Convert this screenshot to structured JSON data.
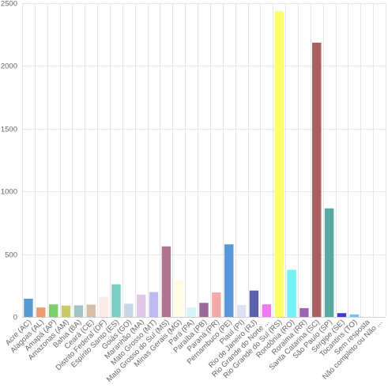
{
  "chart_data": {
    "type": "bar",
    "title": "",
    "xlabel": "",
    "ylabel": "",
    "ylim": [
      0,
      2500
    ],
    "yticks": [
      0,
      500,
      1000,
      1500,
      2000,
      2500
    ],
    "ytick_labels": [
      "0",
      "500",
      "1000",
      "1500",
      "2000",
      "2500"
    ],
    "grid": true,
    "legend": "none",
    "categories": [
      "Acre (AC)",
      "Alagoas (AL)",
      "Amapá (AP)",
      "Amazonas (AM)",
      "Bahia (BA)",
      "Ceará (CE)",
      "Distrito Federal (DF)",
      "Espírito Santo (ES)",
      "Goiás (GO)",
      "Maranhão (MA)",
      "Mato Grosso (MT)",
      "Mato Grosso do Sul (MS)",
      "Minas Gerais (MG)",
      "Pará (PA)",
      "Paraíba (PB)",
      "Paraná (PR)",
      "Pernambuco (PE)",
      "Piauí (PI)",
      "Rio de Janeiro (RJ)",
      "Rio Grande do Norte ...",
      "Rio Grande do Sul (RS)",
      "Rondônia (RO)",
      "Roraima (RR)",
      "Santa Catarina (SC)",
      "São Paulo (SP)",
      "Sergipe (SE)",
      "Tocantins (TO)",
      "Sem resposta",
      "Não completo ou Não ..."
    ],
    "values": [
      145,
      75,
      100,
      90,
      92,
      98,
      160,
      260,
      105,
      178,
      198,
      562,
      290,
      75,
      112,
      195,
      578,
      95,
      210,
      100,
      2435,
      375,
      70,
      2185,
      865,
      30,
      20,
      0,
      0
    ],
    "colors": [
      "#5b9bd5",
      "#ec9a6e",
      "#7dcf6a",
      "#c9c966",
      "#a0c4c8",
      "#d8bea5",
      "#fbe9e7",
      "#7acfc4",
      "#c8d6e5",
      "#e4c6e6",
      "#c0b8f0",
      "#b07590",
      "#fdfbe0",
      "#d3f3f5",
      "#9a6b9a",
      "#f5a8a8",
      "#5a96d8",
      "#dbe0f4",
      "#5b5fa8",
      "#f078f0",
      "#ffff6a",
      "#70f2f6",
      "#9c64b4",
      "#a86060",
      "#5aa8a4",
      "#3c3cd0",
      "#66c8f0",
      "#cccccc",
      "#cccccc"
    ]
  }
}
